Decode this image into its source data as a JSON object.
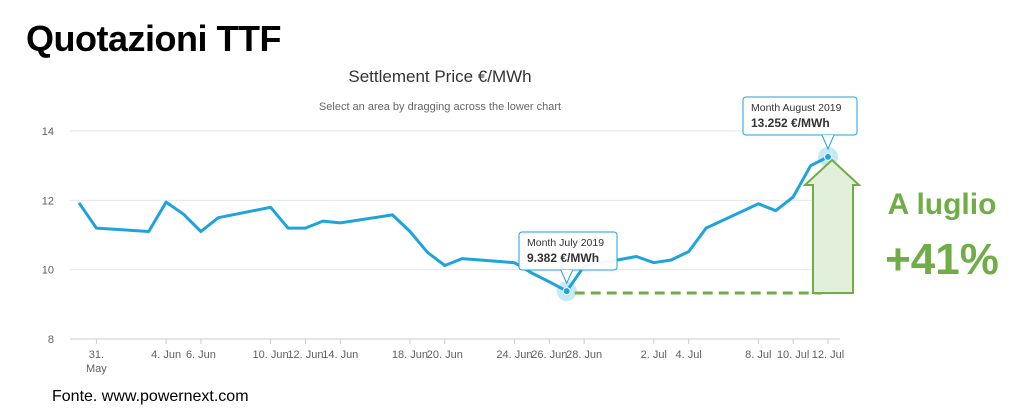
{
  "heading": "Quotazioni TTF",
  "source": "Fonte. www.powernext.com",
  "callout": {
    "line1": "A luglio",
    "line2": "+41%",
    "color": "#70ad47"
  },
  "tooltips": [
    {
      "label": "Month July 2019",
      "value": "9.382 €/MWh"
    },
    {
      "label": "Month August 2019",
      "value": "13.252 €/MWh"
    }
  ],
  "chart_data": {
    "type": "line",
    "title": "Settlement Price €/MWh",
    "subtitle": "Select an area by dragging across the lower chart",
    "ylim": [
      8,
      14
    ],
    "yticks": [
      8,
      10,
      12,
      14
    ],
    "xlim": [
      "2019-05-31",
      "2019-07-12"
    ],
    "xticks": [
      {
        "x": "2019-05-31",
        "label": "31.",
        "label2": "May"
      },
      {
        "x": "2019-06-04",
        "label": "4. Jun"
      },
      {
        "x": "2019-06-06",
        "label": "6. Jun"
      },
      {
        "x": "2019-06-10",
        "label": "10. Jun"
      },
      {
        "x": "2019-06-12",
        "label": "12. Jun"
      },
      {
        "x": "2019-06-14",
        "label": "14. Jun"
      },
      {
        "x": "2019-06-18",
        "label": "18. Jun"
      },
      {
        "x": "2019-06-20",
        "label": "20. Jun"
      },
      {
        "x": "2019-06-24",
        "label": "24. Jun"
      },
      {
        "x": "2019-06-26",
        "label": "26. Jun"
      },
      {
        "x": "2019-06-28",
        "label": "28. Jun"
      },
      {
        "x": "2019-07-02",
        "label": "2. Jul"
      },
      {
        "x": "2019-07-04",
        "label": "4. Jul"
      },
      {
        "x": "2019-07-08",
        "label": "8. Jul"
      },
      {
        "x": "2019-07-10",
        "label": "10. Jul"
      },
      {
        "x": "2019-07-12",
        "label": "12. Jul"
      }
    ],
    "grid": true,
    "legend": "none",
    "color": "#1ea3dc",
    "x": [
      "2019-05-30",
      "2019-05-31",
      "2019-06-03",
      "2019-06-04",
      "2019-06-05",
      "2019-06-06",
      "2019-06-07",
      "2019-06-10",
      "2019-06-11",
      "2019-06-12",
      "2019-06-13",
      "2019-06-14",
      "2019-06-17",
      "2019-06-18",
      "2019-06-19",
      "2019-06-20",
      "2019-06-21",
      "2019-06-24",
      "2019-06-25",
      "2019-06-26",
      "2019-06-27",
      "2019-06-28",
      "2019-07-01",
      "2019-07-02",
      "2019-07-03",
      "2019-07-04",
      "2019-07-05",
      "2019-07-08",
      "2019-07-09",
      "2019-07-10",
      "2019-07-11",
      "2019-07-12"
    ],
    "y": [
      11.93,
      11.2,
      11.1,
      11.95,
      11.6,
      11.1,
      11.5,
      11.8,
      11.2,
      11.2,
      11.4,
      11.35,
      11.58,
      11.1,
      10.5,
      10.12,
      10.32,
      10.2,
      9.9,
      9.65,
      9.382,
      10.1,
      10.38,
      10.2,
      10.28,
      10.52,
      11.2,
      11.9,
      11.7,
      12.1,
      13.0,
      13.252
    ]
  }
}
